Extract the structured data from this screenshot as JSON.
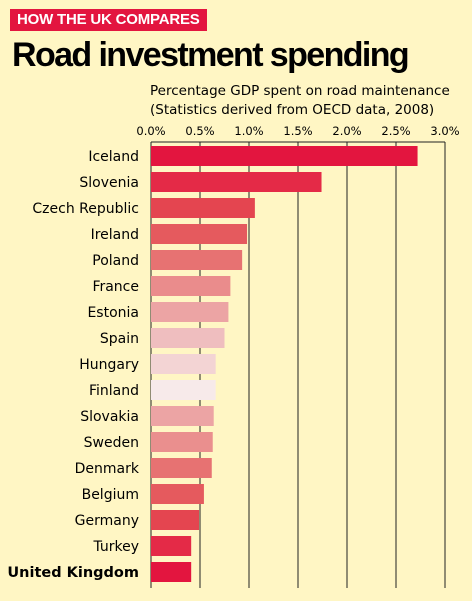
{
  "header": {
    "kicker": "HOW THE UK COMPARES",
    "title": "Road investment spending",
    "subtitle_line1": "Percentage GDP spent on road maintenance",
    "subtitle_line2": "(Statistics derived from OECD data, 2008)"
  },
  "chart_data": {
    "type": "bar",
    "orientation": "horizontal",
    "title": "Road investment spending",
    "subtitle": "Percentage GDP spent on road maintenance (Statistics derived from OECD data, 2008)",
    "xlim": [
      0,
      3.0
    ],
    "ticks": [
      0,
      0.5,
      1.0,
      1.5,
      2.0,
      2.5,
      3.0
    ],
    "tick_labels": [
      "0.0%",
      "0.5%",
      "1.0%",
      "1.5%",
      "2.0%",
      "2.5%",
      "3.0%"
    ],
    "grid": true,
    "highlight": "United Kingdom",
    "categories": [
      "Iceland",
      "Slovenia",
      "Czech Republic",
      "Ireland",
      "Poland",
      "France",
      "Estonia",
      "Spain",
      "Hungary",
      "Finland",
      "Slovakia",
      "Sweden",
      "Denmark",
      "Belgium",
      "Germany",
      "Turkey",
      "United Kingdom"
    ],
    "values": [
      2.72,
      1.74,
      1.06,
      0.98,
      0.93,
      0.81,
      0.79,
      0.75,
      0.66,
      0.66,
      0.64,
      0.63,
      0.62,
      0.54,
      0.49,
      0.41,
      0.41
    ],
    "colors": [
      "#e3153f",
      "#e42a47",
      "#e44550",
      "#e55a5e",
      "#e77272",
      "#ea8c8c",
      "#eca4a4",
      "#efbebf",
      "#f3d4d4",
      "#f7eaea",
      "#eca4a4",
      "#ea8f8e",
      "#e77272",
      "#e55a5e",
      "#e44550",
      "#e42a47",
      "#e3153f"
    ]
  }
}
